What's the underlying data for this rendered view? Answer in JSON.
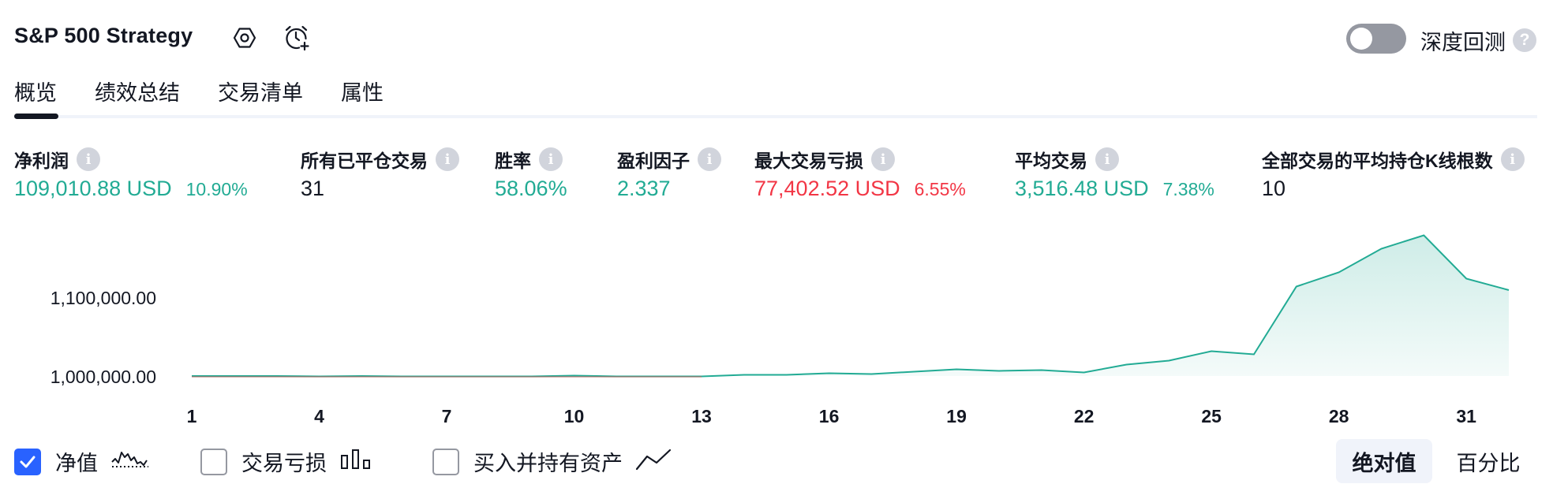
{
  "header": {
    "title": "S&P 500 Strategy",
    "settings_icon": "hexagon-settings-icon",
    "alert_icon": "add-alarm-icon",
    "deep_backtest_label": "深度回测",
    "deep_backtest_enabled": false,
    "help_glyph": "?"
  },
  "tabs": [
    {
      "label": "概览",
      "active": true
    },
    {
      "label": "绩效总结",
      "active": false
    },
    {
      "label": "交易清单",
      "active": false
    },
    {
      "label": "属性",
      "active": false
    }
  ],
  "metrics": [
    {
      "label": "净利润",
      "value": "109,010.88 USD",
      "pct": "10.90%",
      "color": "#22ab94"
    },
    {
      "label": "所有已平仓交易",
      "value": "31",
      "pct": "",
      "color": "#131722"
    },
    {
      "label": "胜率",
      "value": "58.06%",
      "pct": "",
      "color": "#22ab94"
    },
    {
      "label": "盈利因子",
      "value": "2.337",
      "pct": "",
      "color": "#22ab94"
    },
    {
      "label": "最大交易亏损",
      "value": "77,402.52 USD",
      "pct": "6.55%",
      "color": "#f23645"
    },
    {
      "label": "平均交易",
      "value": "3,516.48 USD",
      "pct": "7.38%",
      "color": "#22ab94"
    },
    {
      "label": "全部交易的平均持仓K线根数",
      "value": "10",
      "pct": "",
      "color": "#131722"
    }
  ],
  "chart_data": {
    "type": "area",
    "x": [
      1,
      2,
      3,
      4,
      5,
      6,
      7,
      8,
      9,
      10,
      11,
      12,
      13,
      14,
      15,
      16,
      17,
      18,
      19,
      20,
      21,
      22,
      23,
      24,
      25,
      26,
      27,
      28,
      29,
      30,
      31,
      32
    ],
    "series": [
      {
        "values": [
          1000000,
          1000000,
          1000000,
          999500,
          1000000,
          999500,
          999500,
          999500,
          999500,
          1000500,
          999500,
          999500,
          999500,
          1001500,
          1001500,
          1003500,
          1002500,
          1005500,
          1008500,
          1006500,
          1007500,
          1004500,
          1014500,
          1019500,
          1031500,
          1027500,
          1113500,
          1131500,
          1161500,
          1178500,
          1123500,
          1109000
        ],
        "color": "#22ab94"
      }
    ],
    "ytick_labels": [
      "1,100,000.00",
      "1,000,000.00"
    ],
    "yticks": [
      1100000,
      1000000
    ],
    "xtick_labels": [
      "1",
      "4",
      "7",
      "10",
      "13",
      "16",
      "19",
      "22",
      "25",
      "28",
      "31"
    ],
    "ylim": [
      1000000,
      1180000
    ],
    "xlim": [
      1,
      32
    ],
    "grid": false
  },
  "legend": [
    {
      "label": "净值",
      "checked": true,
      "glyph": "equity-wave-icon"
    },
    {
      "label": "交易亏损",
      "checked": false,
      "glyph": "bar-chart-icon"
    },
    {
      "label": "买入并持有资产",
      "checked": false,
      "glyph": "line-trend-icon"
    }
  ],
  "view_mode": {
    "options": [
      "绝对值",
      "百分比"
    ],
    "selected": "绝对值"
  },
  "colors": {
    "profit": "#22ab94",
    "loss": "#f23645",
    "accent": "#2962ff"
  }
}
